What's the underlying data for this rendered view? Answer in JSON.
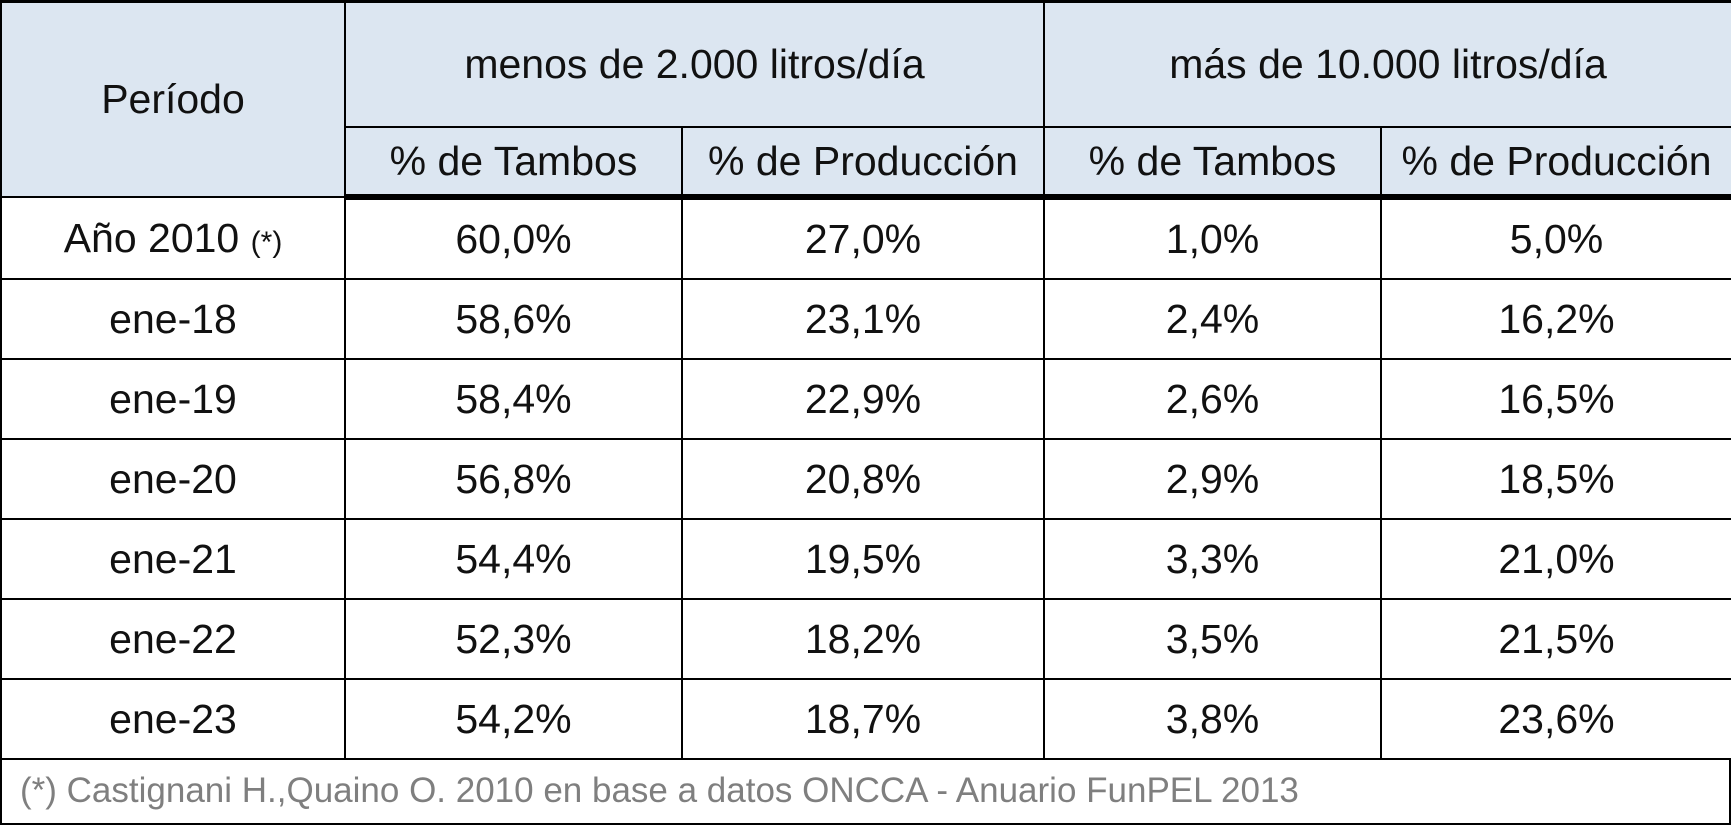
{
  "table": {
    "header": {
      "period": "Período",
      "group_small": "menos de 2.000 litros/día",
      "group_large": "más de 10.000 litros/día",
      "sub_small_tambos": "% de Tambos",
      "sub_small_produccion": "% de Producción",
      "sub_large_tambos": "% de Tambos",
      "sub_large_produccion": "% de Producción"
    },
    "rows": [
      {
        "period": "Año 2010",
        "note": "(*)",
        "small_tambos": "60,0%",
        "small_produccion": "27,0%",
        "large_tambos": "1,0%",
        "large_produccion": "5,0%"
      },
      {
        "period": "ene-18",
        "note": "",
        "small_tambos": "58,6%",
        "small_produccion": "23,1%",
        "large_tambos": "2,4%",
        "large_produccion": "16,2%"
      },
      {
        "period": "ene-19",
        "note": "",
        "small_tambos": "58,4%",
        "small_produccion": "22,9%",
        "large_tambos": "2,6%",
        "large_produccion": "16,5%"
      },
      {
        "period": "ene-20",
        "note": "",
        "small_tambos": "56,8%",
        "small_produccion": "20,8%",
        "large_tambos": "2,9%",
        "large_produccion": "18,5%"
      },
      {
        "period": "ene-21",
        "note": "",
        "small_tambos": "54,4%",
        "small_produccion": "19,5%",
        "large_tambos": "3,3%",
        "large_produccion": "21,0%"
      },
      {
        "period": "ene-22",
        "note": "",
        "small_tambos": "52,3%",
        "small_produccion": "18,2%",
        "large_tambos": "3,5%",
        "large_produccion": "21,5%"
      },
      {
        "period": "ene-23",
        "note": "",
        "small_tambos": "54,2%",
        "small_produccion": "18,7%",
        "large_tambos": "3,8%",
        "large_produccion": "23,6%"
      }
    ]
  },
  "footnote": "(*) Castignani H.,Quaino O. 2010 en base a datos ONCCA - Anuario FunPEL 2013",
  "colors": {
    "header_bg": "#dce6f1",
    "border": "#000000",
    "footnote_text": "#7f7f7f"
  }
}
